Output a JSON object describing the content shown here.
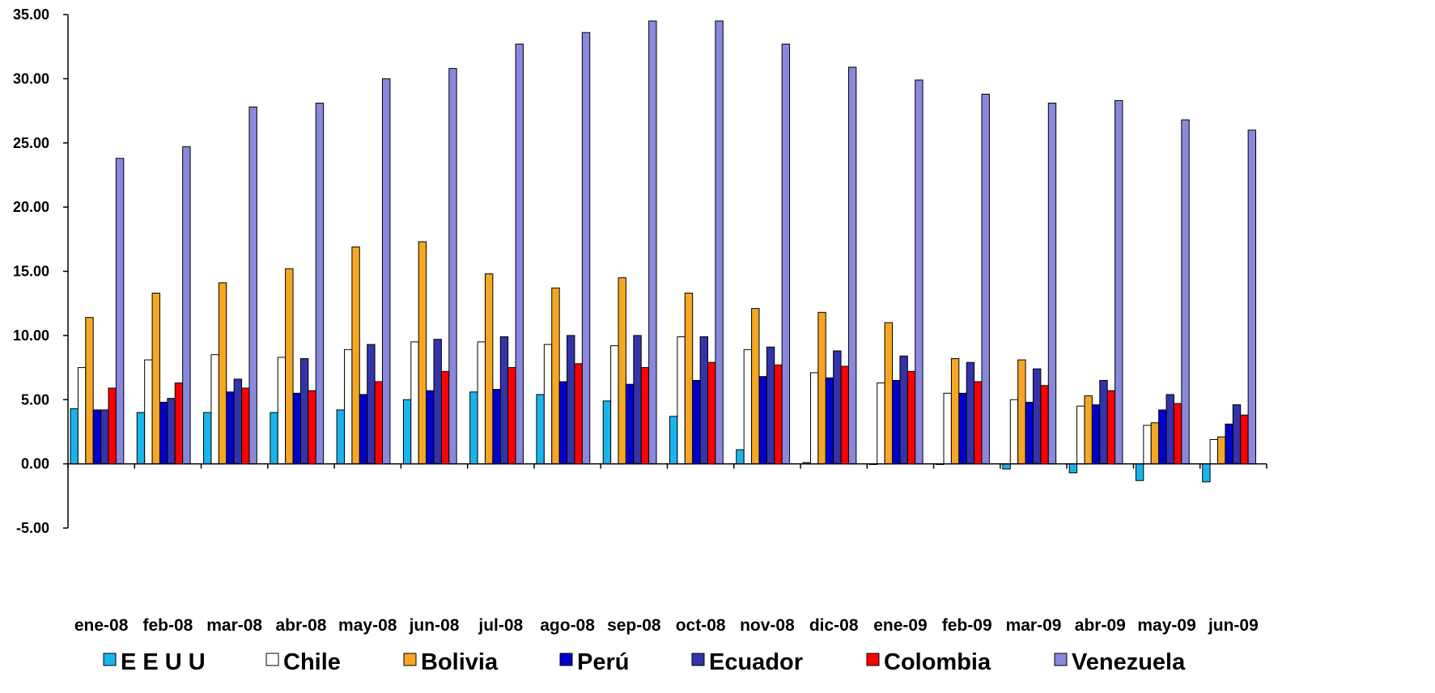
{
  "chart_data": {
    "type": "bar",
    "title": "",
    "xlabel": "",
    "ylabel": "",
    "ylim": [
      -5,
      35
    ],
    "yticks": [
      "-5.00",
      "0.00",
      "5.00",
      "10.00",
      "15.00",
      "20.00",
      "25.00",
      "30.00",
      "35.00"
    ],
    "grid": false,
    "legend_position": "bottom",
    "categories": [
      "ene-08",
      "feb-08",
      "mar-08",
      "abr-08",
      "may-08",
      "jun-08",
      "jul-08",
      "ago-08",
      "sep-08",
      "oct-08",
      "nov-08",
      "dic-08",
      "ene-09",
      "feb-09",
      "mar-09",
      "abr-09",
      "may-09",
      "jun-09"
    ],
    "series": [
      {
        "name": "E E U U",
        "color": "#1ab4ec",
        "values": [
          4.3,
          4.0,
          4.0,
          4.0,
          4.2,
          5.0,
          5.6,
          5.4,
          4.9,
          3.7,
          1.1,
          0.1,
          0.0,
          0.0,
          -0.4,
          -0.7,
          -1.3,
          -1.4
        ]
      },
      {
        "name": "Chile",
        "color": "#ffffff",
        "values": [
          7.5,
          8.1,
          8.5,
          8.3,
          8.9,
          9.5,
          9.5,
          9.3,
          9.2,
          9.9,
          8.9,
          7.1,
          6.3,
          5.5,
          5.0,
          4.5,
          3.0,
          1.9
        ]
      },
      {
        "name": "Bolivia",
        "color": "#f5a623",
        "values": [
          11.4,
          13.3,
          14.1,
          15.2,
          16.9,
          17.3,
          14.8,
          13.7,
          14.5,
          13.3,
          12.1,
          11.8,
          11.0,
          8.2,
          8.1,
          5.3,
          3.2,
          2.1
        ]
      },
      {
        "name": "Perú",
        "color": "#0000cc",
        "values": [
          4.2,
          4.8,
          5.6,
          5.5,
          5.4,
          5.7,
          5.8,
          6.4,
          6.2,
          6.5,
          6.8,
          6.7,
          6.5,
          5.5,
          4.8,
          4.6,
          4.2,
          3.1
        ]
      },
      {
        "name": "Ecuador",
        "color": "#3333aa",
        "values": [
          4.2,
          5.1,
          6.6,
          8.2,
          9.3,
          9.7,
          9.9,
          10.0,
          10.0,
          9.9,
          9.1,
          8.8,
          8.4,
          7.9,
          7.4,
          6.5,
          5.4,
          4.6
        ]
      },
      {
        "name": "Colombia",
        "color": "#ff0000",
        "values": [
          5.9,
          6.3,
          5.9,
          5.7,
          6.4,
          7.2,
          7.5,
          7.8,
          7.5,
          7.9,
          7.7,
          7.6,
          7.2,
          6.4,
          6.1,
          5.7,
          4.7,
          3.8
        ]
      },
      {
        "name": "Venezuela",
        "color": "#8888dd",
        "values": [
          23.8,
          24.7,
          27.8,
          28.1,
          30.0,
          30.8,
          32.7,
          33.6,
          34.5,
          34.5,
          32.7,
          30.9,
          29.9,
          28.8,
          28.1,
          28.3,
          26.8,
          26.0
        ]
      }
    ]
  }
}
